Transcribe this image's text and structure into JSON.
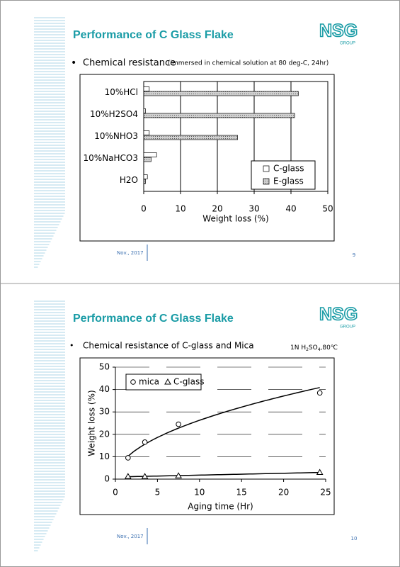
{
  "slides": [
    {
      "title": "Performance of C Glass Flake",
      "logo": "NSG",
      "logo_sub": "GROUP",
      "bullet": "Chemical resistance",
      "bullet_note": "(immersed in chemical solution at 80 deg-C, 24hr)",
      "date": "Nov., 2017",
      "page": "9"
    },
    {
      "title": "Performance of C Glass Flake",
      "logo": "NSG",
      "logo_sub": "GROUP",
      "bullet": "Chemical resistance of C-glass and Mica",
      "condition": [
        "1N H",
        "2",
        "SO",
        "4",
        ",80℃"
      ],
      "date": "Nov., 2017",
      "page": "10"
    }
  ],
  "chart_data": [
    {
      "type": "bar",
      "orientation": "horizontal",
      "categories": [
        "10%HCl",
        "10%H2SO4",
        "10%NHO3",
        "10%NaHCO3",
        "H2O"
      ],
      "series": [
        {
          "name": "C-glass",
          "color": "#ffffff",
          "values": [
            1.5,
            0.5,
            1.5,
            3.5,
            1
          ]
        },
        {
          "name": "E-glass",
          "color": "#d0d0d0",
          "values": [
            42,
            41,
            25.5,
            2,
            0.5
          ]
        }
      ],
      "xlim": [
        0,
        50
      ],
      "xticks": [
        0,
        10,
        20,
        30,
        40,
        50
      ],
      "xlabel": "Weight loss (%)",
      "grid": true,
      "legend": "lower right"
    },
    {
      "type": "scatter",
      "series": [
        {
          "name": "mica",
          "marker": "circle",
          "fit": "power",
          "x": [
            1.5,
            3.5,
            7.5,
            24.3
          ],
          "values": [
            9.5,
            16.5,
            24.5,
            38.5
          ]
        },
        {
          "name": "C-glass",
          "marker": "triangle",
          "fit": "linear",
          "x": [
            1.5,
            3.5,
            7.5,
            24.3
          ],
          "values": [
            1.2,
            1.2,
            1.5,
            3
          ]
        }
      ],
      "xlim": [
        0,
        25
      ],
      "xticks": [
        0,
        5,
        10,
        15,
        20,
        25
      ],
      "xlabel": "Aging time (Hr)",
      "ylim": [
        0,
        50
      ],
      "yticks": [
        0,
        10,
        20,
        30,
        40,
        50
      ],
      "ylabel": "Weight loss (%)",
      "grid": true,
      "legend": "upper left"
    }
  ]
}
